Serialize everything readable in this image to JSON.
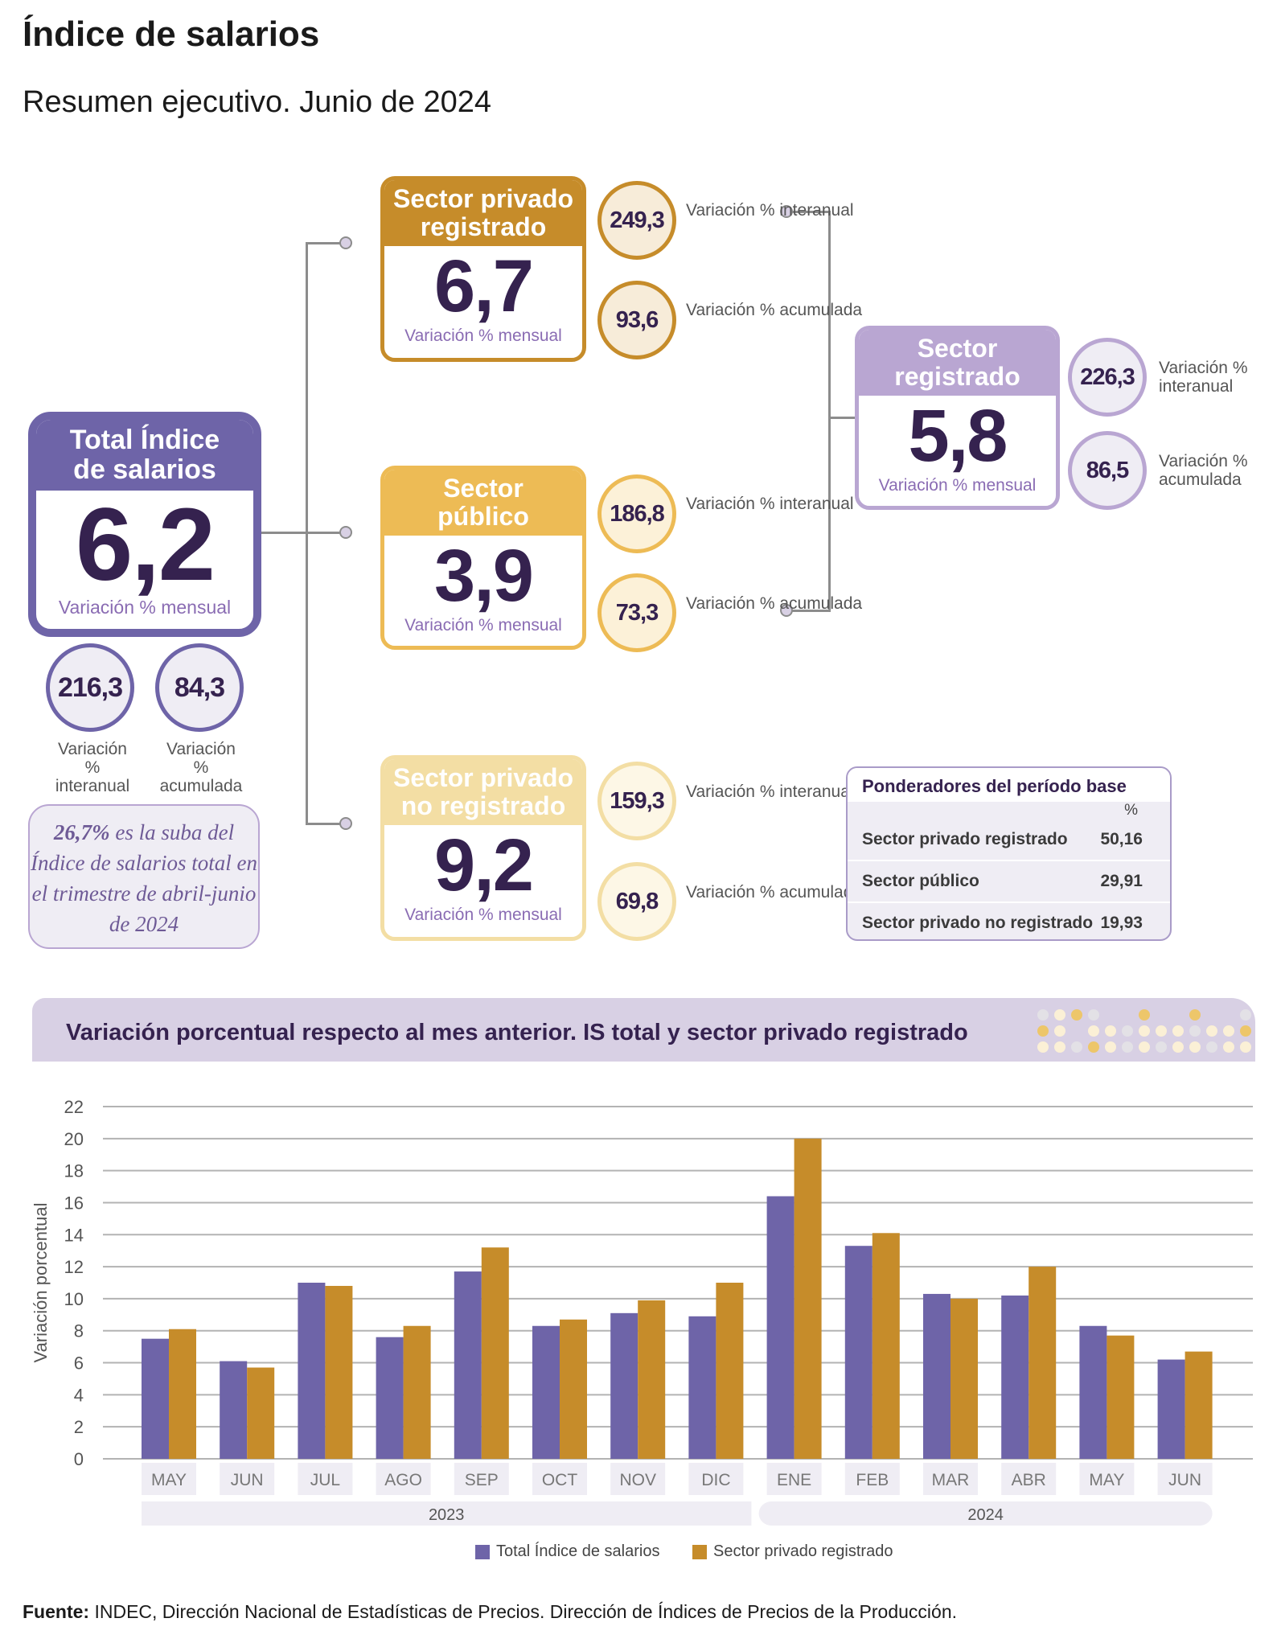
{
  "header": {
    "title": "Índice de salarios",
    "subtitle": "Resumen ejecutivo. Junio de 2024"
  },
  "colors": {
    "purple": "#6e64a8",
    "dark": "#35224f",
    "gold": "#c68c2a",
    "yellow": "#edbb55",
    "light_yellow": "#f3dea4",
    "lavender": "#b9a6d2"
  },
  "total": {
    "title": "Total Índice de salarios",
    "monthly": "6,2",
    "monthly_label": "Variación % mensual",
    "interanual": "216,3",
    "interanual_label": "Variación % interanual",
    "acumulada": "84,3",
    "acumulada_label": "Variación % acumulada"
  },
  "quote": {
    "highlight": "26,7%",
    "text": " es la suba del Índice de salarios total en el trimestre de abril-junio de 2024"
  },
  "sectors": [
    {
      "title": "Sector privado registrado",
      "monthly": "6,7",
      "monthly_label": "Variación % mensual",
      "interanual": "249,3",
      "interanual_label": "Variación % interanual",
      "acumulada": "93,6",
      "acumulada_label": "Variación % acumulada"
    },
    {
      "title": "Sector público",
      "monthly": "3,9",
      "monthly_label": "Variación % mensual",
      "interanual": "186,8",
      "interanual_label": "Variación % interanual",
      "acumulada": "73,3",
      "acumulada_label": "Variación % acumulada"
    },
    {
      "title": "Sector privado no registrado",
      "monthly": "9,2",
      "monthly_label": "Variación % mensual",
      "interanual": "159,3",
      "interanual_label": "Variación % interanual",
      "acumulada": "69,8",
      "acumulada_label": "Variación % acumulada"
    },
    {
      "title": "Sector registrado",
      "monthly": "5,8",
      "monthly_label": "Variación % mensual",
      "interanual": "226,3",
      "interanual_label": "Variación % interanual",
      "acumulada": "86,5",
      "acumulada_label": "Variación % acumulada"
    }
  ],
  "ponderadores": {
    "title": "Ponderadores del período base",
    "unit": "%",
    "rows": [
      {
        "label": "Sector privado registrado",
        "value": "50,16"
      },
      {
        "label": "Sector público",
        "value": "29,91"
      },
      {
        "label": "Sector privado no registrado",
        "value": "19,93"
      }
    ]
  },
  "chart_title": "Variación porcentual respecto al mes anterior. IS total y sector privado registrado",
  "chart_data": {
    "type": "bar",
    "categories": [
      "MAY",
      "JUN",
      "JUL",
      "AGO",
      "SEP",
      "OCT",
      "NOV",
      "DIC",
      "ENE",
      "FEB",
      "MAR",
      "ABR",
      "MAY",
      "JUN"
    ],
    "groups": [
      {
        "label": "2023",
        "from": 0,
        "to": 7
      },
      {
        "label": "2024",
        "from": 8,
        "to": 13
      }
    ],
    "series": [
      {
        "name": "Total Índice de salarios",
        "color": "#6e64a8",
        "values": [
          7.5,
          6.1,
          11.0,
          7.6,
          11.7,
          8.3,
          9.1,
          8.9,
          16.4,
          13.3,
          10.3,
          10.2,
          8.3,
          6.2
        ]
      },
      {
        "name": "Sector privado registrado",
        "color": "#c68c2a",
        "values": [
          8.1,
          5.7,
          10.8,
          8.3,
          13.2,
          8.7,
          9.9,
          11.0,
          20.0,
          14.1,
          10.0,
          12.0,
          7.7,
          6.7
        ]
      }
    ],
    "ylabel": "Variación porcentual",
    "ylim": [
      0,
      22
    ],
    "yticks": [
      0,
      2,
      4,
      6,
      8,
      10,
      12,
      14,
      16,
      18,
      20,
      22
    ],
    "grid": true,
    "legend": "bottom"
  },
  "footer": {
    "label": "Fuente:",
    "text": " INDEC, Dirección Nacional de Estadísticas de Precios. Dirección de Índices de Precios de la Producción."
  }
}
